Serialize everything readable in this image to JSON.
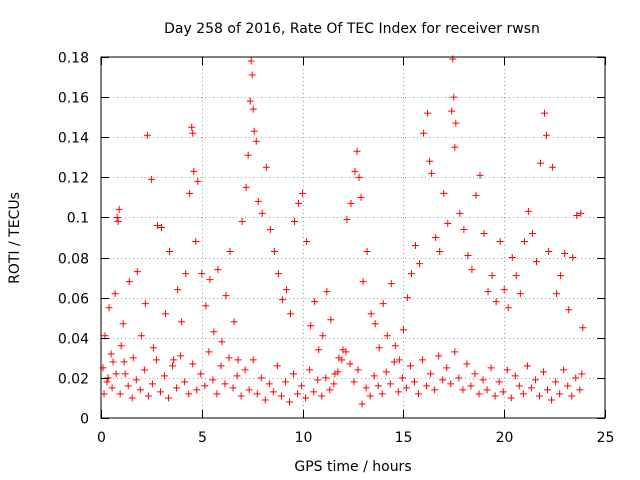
{
  "chart_data": {
    "type": "scatter",
    "title": "Day 258 of 2016, Rate Of TEC Index for receiver rwsn",
    "xlabel": "GPS time / hours",
    "ylabel": "ROTI / TECUs",
    "xlim": [
      0,
      25
    ],
    "ylim": [
      0,
      0.18
    ],
    "x_ticks": [
      0,
      5,
      10,
      15,
      20,
      25
    ],
    "x_tick_labels": [
      "0",
      "5",
      "10",
      "15",
      "20",
      "25"
    ],
    "y_ticks": [
      0,
      0.02,
      0.04,
      0.06,
      0.08,
      0.1,
      0.12,
      0.14,
      0.16,
      0.18
    ],
    "y_tick_labels": [
      "0",
      "0.02",
      "0.04",
      "0.06",
      "0.08",
      "0.1",
      "0.12",
      "0.14",
      "0.16",
      "0.18"
    ],
    "grid": true,
    "marker": "+",
    "color": "#ff0000",
    "series": [
      {
        "name": "ROTI",
        "points": [
          [
            0.1,
            0.025
          ],
          [
            0.2,
            0.041
          ],
          [
            0.3,
            0.018
          ],
          [
            0.4,
            0.055
          ],
          [
            0.5,
            0.032
          ],
          [
            0.6,
            0.028
          ],
          [
            0.7,
            0.062
          ],
          [
            0.8,
            0.1
          ],
          [
            0.85,
            0.098
          ],
          [
            0.9,
            0.104
          ],
          [
            1.0,
            0.036
          ],
          [
            1.1,
            0.047
          ],
          [
            1.2,
            0.022
          ],
          [
            1.4,
            0.068
          ],
          [
            1.6,
            0.03
          ],
          [
            1.8,
            0.073
          ],
          [
            2.0,
            0.041
          ],
          [
            2.2,
            0.057
          ],
          [
            2.3,
            0.141
          ],
          [
            2.5,
            0.119
          ],
          [
            2.6,
            0.035
          ],
          [
            2.8,
            0.096
          ],
          [
            3.0,
            0.095
          ],
          [
            3.2,
            0.052
          ],
          [
            3.4,
            0.083
          ],
          [
            3.6,
            0.029
          ],
          [
            3.8,
            0.064
          ],
          [
            4.0,
            0.048
          ],
          [
            4.2,
            0.072
          ],
          [
            4.4,
            0.112
          ],
          [
            4.5,
            0.145
          ],
          [
            4.55,
            0.142
          ],
          [
            4.6,
            0.123
          ],
          [
            4.7,
            0.088
          ],
          [
            4.8,
            0.118
          ],
          [
            5.0,
            0.072
          ],
          [
            5.2,
            0.056
          ],
          [
            5.4,
            0.069
          ],
          [
            5.6,
            0.043
          ],
          [
            5.8,
            0.074
          ],
          [
            6.0,
            0.038
          ],
          [
            6.2,
            0.061
          ],
          [
            6.4,
            0.083
          ],
          [
            6.6,
            0.048
          ],
          [
            6.8,
            0.029
          ],
          [
            7.0,
            0.098
          ],
          [
            7.2,
            0.115
          ],
          [
            7.3,
            0.131
          ],
          [
            7.4,
            0.158
          ],
          [
            7.45,
            0.178
          ],
          [
            7.5,
            0.171
          ],
          [
            7.55,
            0.154
          ],
          [
            7.6,
            0.143
          ],
          [
            7.7,
            0.138
          ],
          [
            7.8,
            0.108
          ],
          [
            8.0,
            0.102
          ],
          [
            8.2,
            0.125
          ],
          [
            8.4,
            0.094
          ],
          [
            8.6,
            0.083
          ],
          [
            8.8,
            0.072
          ],
          [
            9.0,
            0.059
          ],
          [
            9.2,
            0.064
          ],
          [
            9.4,
            0.052
          ],
          [
            9.6,
            0.098
          ],
          [
            9.8,
            0.107
          ],
          [
            10.0,
            0.112
          ],
          [
            10.2,
            0.088
          ],
          [
            10.4,
            0.046
          ],
          [
            10.6,
            0.058
          ],
          [
            10.8,
            0.034
          ],
          [
            11.0,
            0.041
          ],
          [
            11.2,
            0.063
          ],
          [
            11.4,
            0.049
          ],
          [
            11.6,
            0.022
          ],
          [
            11.8,
            0.03
          ],
          [
            12.0,
            0.034
          ],
          [
            12.2,
            0.099
          ],
          [
            12.4,
            0.107
          ],
          [
            12.6,
            0.123
          ],
          [
            12.7,
            0.133
          ],
          [
            12.8,
            0.12
          ],
          [
            12.9,
            0.11
          ],
          [
            13.0,
            0.068
          ],
          [
            13.2,
            0.083
          ],
          [
            13.4,
            0.052
          ],
          [
            13.6,
            0.047
          ],
          [
            13.8,
            0.035
          ],
          [
            14.0,
            0.057
          ],
          [
            14.2,
            0.041
          ],
          [
            14.4,
            0.067
          ],
          [
            14.6,
            0.036
          ],
          [
            14.8,
            0.029
          ],
          [
            15.0,
            0.044
          ],
          [
            15.2,
            0.06
          ],
          [
            15.4,
            0.072
          ],
          [
            15.6,
            0.086
          ],
          [
            15.8,
            0.077
          ],
          [
            16.0,
            0.142
          ],
          [
            16.2,
            0.152
          ],
          [
            16.3,
            0.128
          ],
          [
            16.4,
            0.122
          ],
          [
            16.6,
            0.09
          ],
          [
            16.8,
            0.083
          ],
          [
            17.0,
            0.112
          ],
          [
            17.2,
            0.097
          ],
          [
            17.4,
            0.153
          ],
          [
            17.45,
            0.179
          ],
          [
            17.5,
            0.16
          ],
          [
            17.55,
            0.135
          ],
          [
            17.6,
            0.147
          ],
          [
            17.8,
            0.102
          ],
          [
            18.0,
            0.094
          ],
          [
            18.2,
            0.081
          ],
          [
            18.4,
            0.074
          ],
          [
            18.6,
            0.111
          ],
          [
            18.8,
            0.121
          ],
          [
            19.0,
            0.092
          ],
          [
            19.2,
            0.063
          ],
          [
            19.4,
            0.071
          ],
          [
            19.6,
            0.058
          ],
          [
            19.8,
            0.088
          ],
          [
            20.0,
            0.064
          ],
          [
            20.2,
            0.055
          ],
          [
            20.4,
            0.08
          ],
          [
            20.6,
            0.071
          ],
          [
            20.8,
            0.062
          ],
          [
            21.0,
            0.088
          ],
          [
            21.2,
            0.103
          ],
          [
            21.4,
            0.092
          ],
          [
            21.6,
            0.078
          ],
          [
            21.8,
            0.127
          ],
          [
            22.0,
            0.152
          ],
          [
            22.1,
            0.141
          ],
          [
            22.2,
            0.083
          ],
          [
            22.4,
            0.125
          ],
          [
            22.6,
            0.062
          ],
          [
            22.8,
            0.071
          ],
          [
            23.0,
            0.082
          ],
          [
            23.2,
            0.054
          ],
          [
            23.4,
            0.08
          ],
          [
            23.6,
            0.101
          ],
          [
            23.8,
            0.102
          ],
          [
            23.9,
            0.045
          ],
          [
            0.15,
            0.012
          ],
          [
            0.35,
            0.02
          ],
          [
            0.55,
            0.015
          ],
          [
            0.75,
            0.022
          ],
          [
            0.95,
            0.012
          ],
          [
            1.15,
            0.028
          ],
          [
            1.35,
            0.016
          ],
          [
            1.55,
            0.01
          ],
          [
            1.75,
            0.019
          ],
          [
            1.95,
            0.014
          ],
          [
            2.15,
            0.024
          ],
          [
            2.35,
            0.011
          ],
          [
            2.55,
            0.017
          ],
          [
            2.75,
            0.029
          ],
          [
            2.95,
            0.013
          ],
          [
            3.15,
            0.021
          ],
          [
            3.35,
            0.01
          ],
          [
            3.55,
            0.026
          ],
          [
            3.75,
            0.015
          ],
          [
            3.95,
            0.031
          ],
          [
            4.15,
            0.018
          ],
          [
            4.35,
            0.012
          ],
          [
            4.55,
            0.027
          ],
          [
            4.75,
            0.014
          ],
          [
            4.95,
            0.022
          ],
          [
            5.15,
            0.016
          ],
          [
            5.35,
            0.033
          ],
          [
            5.55,
            0.019
          ],
          [
            5.75,
            0.012
          ],
          [
            5.95,
            0.026
          ],
          [
            6.15,
            0.017
          ],
          [
            6.35,
            0.03
          ],
          [
            6.55,
            0.015
          ],
          [
            6.75,
            0.021
          ],
          [
            6.95,
            0.011
          ],
          [
            7.15,
            0.024
          ],
          [
            7.35,
            0.014
          ],
          [
            7.55,
            0.029
          ],
          [
            7.75,
            0.012
          ],
          [
            7.95,
            0.02
          ],
          [
            8.15,
            0.009
          ],
          [
            8.35,
            0.017
          ],
          [
            8.55,
            0.013
          ],
          [
            8.75,
            0.026
          ],
          [
            8.95,
            0.011
          ],
          [
            9.15,
            0.018
          ],
          [
            9.35,
            0.008
          ],
          [
            9.55,
            0.022
          ],
          [
            9.75,
            0.012
          ],
          [
            9.95,
            0.016
          ],
          [
            10.15,
            0.01
          ],
          [
            10.35,
            0.024
          ],
          [
            10.55,
            0.013
          ],
          [
            10.75,
            0.019
          ],
          [
            10.95,
            0.011
          ],
          [
            11.15,
            0.02
          ],
          [
            11.35,
            0.014
          ],
          [
            11.55,
            0.017
          ],
          [
            11.75,
            0.023
          ],
          [
            11.95,
            0.029
          ],
          [
            12.15,
            0.033
          ],
          [
            12.35,
            0.027
          ],
          [
            12.55,
            0.018
          ],
          [
            12.75,
            0.024
          ],
          [
            12.95,
            0.007
          ],
          [
            13.15,
            0.015
          ],
          [
            13.35,
            0.011
          ],
          [
            13.55,
            0.021
          ],
          [
            13.75,
            0.016
          ],
          [
            13.95,
            0.012
          ],
          [
            14.15,
            0.023
          ],
          [
            14.35,
            0.017
          ],
          [
            14.55,
            0.028
          ],
          [
            14.75,
            0.013
          ],
          [
            14.95,
            0.02
          ],
          [
            15.15,
            0.015
          ],
          [
            15.35,
            0.026
          ],
          [
            15.55,
            0.018
          ],
          [
            15.75,
            0.012
          ],
          [
            15.95,
            0.029
          ],
          [
            16.15,
            0.016
          ],
          [
            16.35,
            0.022
          ],
          [
            16.55,
            0.014
          ],
          [
            16.75,
            0.031
          ],
          [
            16.95,
            0.019
          ],
          [
            17.15,
            0.025
          ],
          [
            17.35,
            0.017
          ],
          [
            17.55,
            0.033
          ],
          [
            17.75,
            0.02
          ],
          [
            17.95,
            0.014
          ],
          [
            18.15,
            0.027
          ],
          [
            18.35,
            0.016
          ],
          [
            18.55,
            0.022
          ],
          [
            18.75,
            0.012
          ],
          [
            18.95,
            0.019
          ],
          [
            19.15,
            0.014
          ],
          [
            19.35,
            0.025
          ],
          [
            19.55,
            0.011
          ],
          [
            19.75,
            0.018
          ],
          [
            19.95,
            0.013
          ],
          [
            20.15,
            0.024
          ],
          [
            20.35,
            0.01
          ],
          [
            20.55,
            0.021
          ],
          [
            20.75,
            0.016
          ],
          [
            20.95,
            0.012
          ],
          [
            21.15,
            0.026
          ],
          [
            21.35,
            0.015
          ],
          [
            21.55,
            0.019
          ],
          [
            21.75,
            0.011
          ],
          [
            21.95,
            0.023
          ],
          [
            22.15,
            0.014
          ],
          [
            22.35,
            0.009
          ],
          [
            22.55,
            0.018
          ],
          [
            22.75,
            0.012
          ],
          [
            22.95,
            0.024
          ],
          [
            23.15,
            0.016
          ],
          [
            23.35,
            0.011
          ],
          [
            23.55,
            0.02
          ],
          [
            23.75,
            0.014
          ],
          [
            23.85,
            0.022
          ]
        ]
      }
    ]
  }
}
